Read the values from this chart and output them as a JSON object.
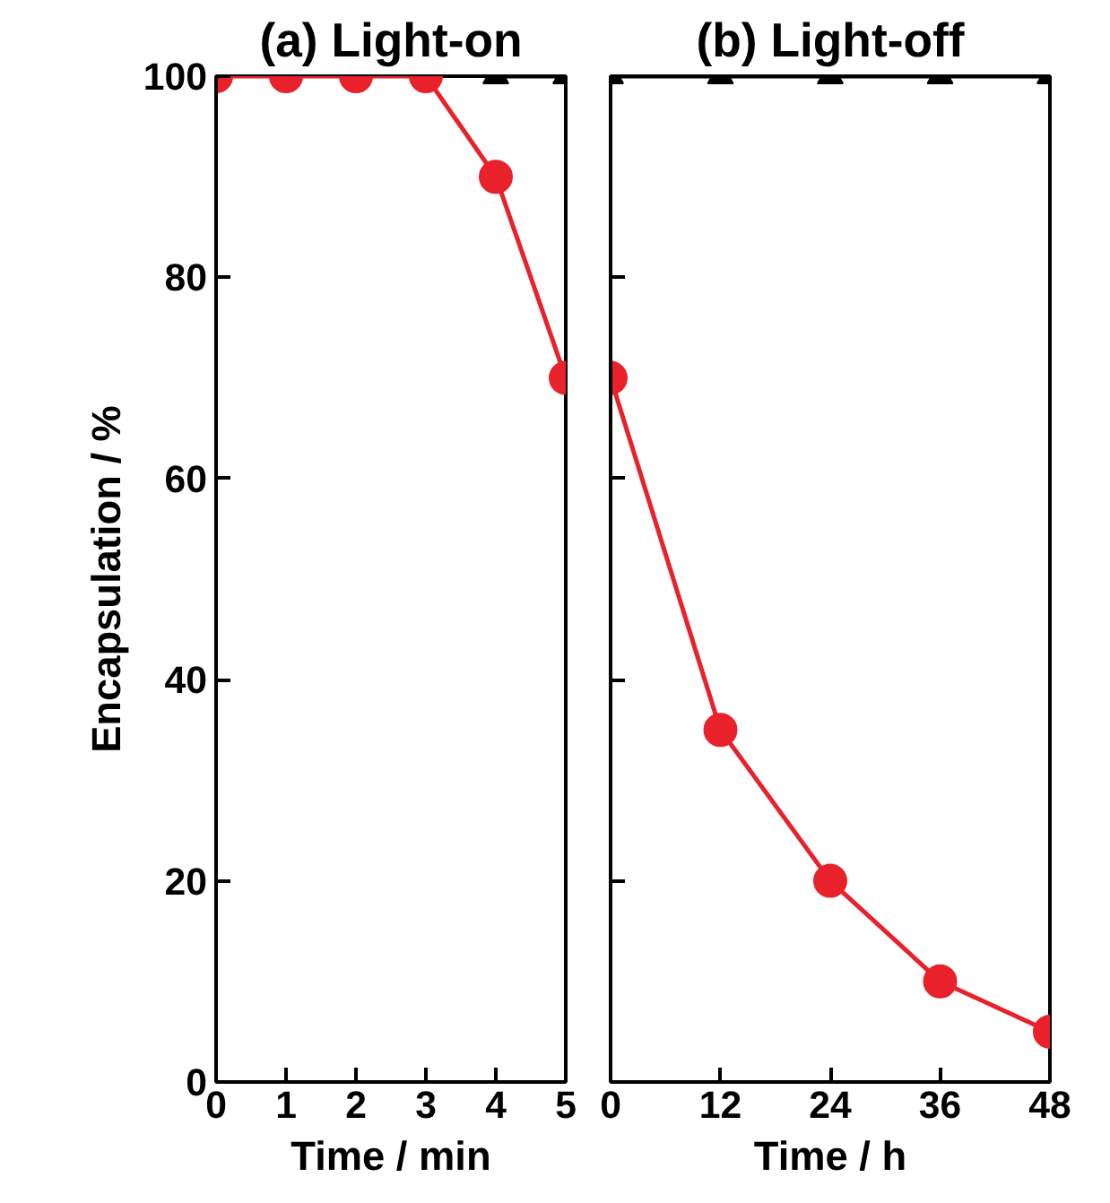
{
  "chart_data": [
    {
      "type": "line",
      "title": "(a) Light-on",
      "xlabel": "Time / min",
      "ylabel": "Encapsulation / %",
      "x": [
        0,
        1,
        2,
        3,
        4,
        5
      ],
      "xlim": [
        0,
        5
      ],
      "xticks": [
        0,
        1,
        2,
        3,
        4,
        5
      ],
      "ylim": [
        0,
        100
      ],
      "yticks": [
        0,
        20,
        40,
        60,
        80,
        100
      ],
      "series": [
        {
          "color": "#000000",
          "marker": "triangle",
          "values": [
            null,
            null,
            null,
            null,
            100,
            100
          ]
        },
        {
          "color": "#e8212b",
          "marker": "circle",
          "values": [
            100,
            100,
            100,
            100,
            90,
            70
          ]
        }
      ]
    },
    {
      "type": "line",
      "title": "(b) Light-off",
      "xlabel": "Time / h",
      "x": [
        0,
        12,
        24,
        36,
        48
      ],
      "xlim": [
        0,
        48
      ],
      "xticks": [
        0,
        12,
        24,
        36,
        48
      ],
      "ylim": [
        0,
        100
      ],
      "yticks": [
        0,
        20,
        40,
        60,
        80,
        100
      ],
      "tick_labels": "x",
      "series": [
        {
          "color": "#000000",
          "marker": "triangle",
          "values": [
            100,
            100,
            100,
            100,
            100
          ]
        },
        {
          "color": "#e8212b",
          "marker": "circle",
          "values": [
            70,
            35,
            20,
            10,
            5
          ]
        }
      ]
    }
  ]
}
